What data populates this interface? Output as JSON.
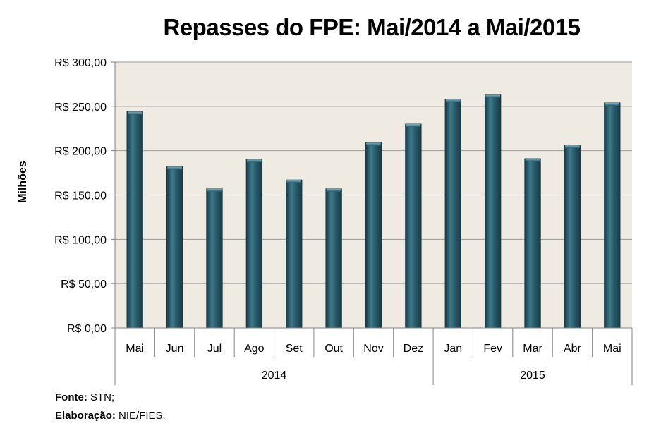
{
  "chart_data": {
    "type": "bar",
    "title": "Repasses do FPE: Mai/2014 a Mai/2015",
    "ylabel": "Milhões",
    "xlabel": "",
    "ylim": [
      0,
      300
    ],
    "yticks": [
      0,
      50,
      100,
      150,
      200,
      250,
      300
    ],
    "ytick_labels": [
      "R$ 0,00",
      "R$ 50,00",
      "R$ 100,00",
      "R$ 150,00",
      "R$ 200,00",
      "R$ 250,00",
      "R$ 300,00"
    ],
    "grid": true,
    "legend": "none",
    "categories": [
      "Mai",
      "Jun",
      "Jul",
      "Ago",
      "Set",
      "Out",
      "Nov",
      "Dez",
      "Jan",
      "Fev",
      "Mar",
      "Abr",
      "Mai"
    ],
    "values": [
      244,
      182,
      157,
      190,
      167,
      157,
      209,
      230,
      258,
      263,
      191,
      206,
      254
    ],
    "groups": [
      {
        "label": "2014",
        "count": 8
      },
      {
        "label": "2015",
        "count": 5
      }
    ],
    "colors": {
      "bar": "#2a5c6b",
      "bar_light": "#4b8a9b",
      "bar_dark": "#173a45",
      "plot_bg": "#efebe2",
      "grid": "#9a9a9a",
      "axis": "#868686"
    }
  },
  "source": {
    "fonte_label": "Fonte:",
    "fonte_value": " STN;",
    "elaboracao_label": "Elaboração:",
    "elaboracao_value": " NIE/FIES."
  }
}
